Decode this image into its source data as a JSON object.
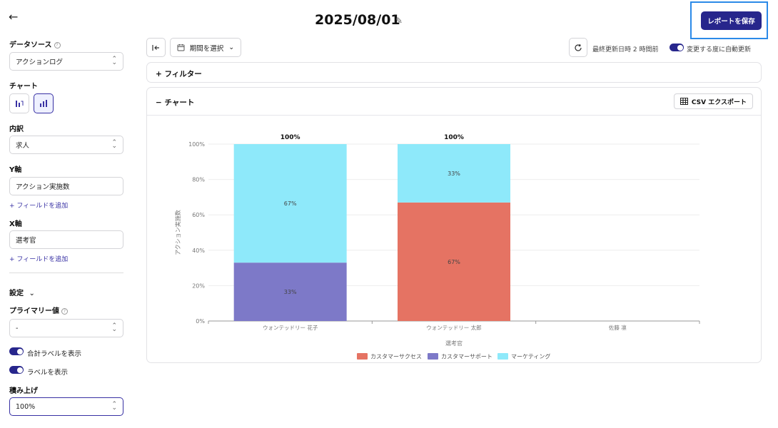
{
  "sidebar": {
    "data_source_label": "データソース",
    "data_source_value": "アクションログ",
    "chart_label": "チャート",
    "breakdown_label": "内訳",
    "breakdown_value": "求人",
    "y_axis_label": "Y軸",
    "y_axis_value": "アクション実施数",
    "add_field_label": "+ フィールドを追加",
    "x_axis_label": "X軸",
    "x_axis_value": "選考官",
    "settings_label": "設定",
    "primary_value_label": "プライマリー値",
    "primary_value_value": "-",
    "total_label_toggle": "合計ラベルを表示",
    "show_label_toggle": "ラベルを表示",
    "stack_label": "積み上げ",
    "stack_value": "100%"
  },
  "header": {
    "title": "2025/08/01",
    "save_button": "レポートを保存",
    "period_button": "期間を選択",
    "updated_text": "最終更新日時 2 時間前",
    "auto_update_text": "変更する度に自動更新"
  },
  "filter_panel": {
    "label": "+  フィルター"
  },
  "chart_panel": {
    "label": "−  チャート",
    "csv_button": "CSV エクスポート"
  },
  "colors": {
    "customer_success": "#e57363",
    "customer_support": "#7d79c8",
    "marketing": "#8ee9fa",
    "accent": "#27268c"
  },
  "chart_data": {
    "type": "bar",
    "stacked": "100%",
    "categories": [
      "ウォンテッドリー 花子",
      "ウォンテッドリー 太郎",
      "佐藤 凛"
    ],
    "series": [
      {
        "name": "カスタマーサクセス",
        "values": [
          0,
          67,
          0
        ]
      },
      {
        "name": "カスタマーサポート",
        "values": [
          33,
          0,
          0
        ]
      },
      {
        "name": "マーケティング",
        "values": [
          67,
          33,
          0
        ]
      }
    ],
    "totals": [
      "100%",
      "100%",
      ""
    ],
    "ylabel": "アクション実施数",
    "xlabel": "選考官",
    "yticks": [
      "0%",
      "20%",
      "40%",
      "60%",
      "80%",
      "100%"
    ],
    "ylim": [
      0,
      100
    ],
    "legend_position": "bottom"
  }
}
